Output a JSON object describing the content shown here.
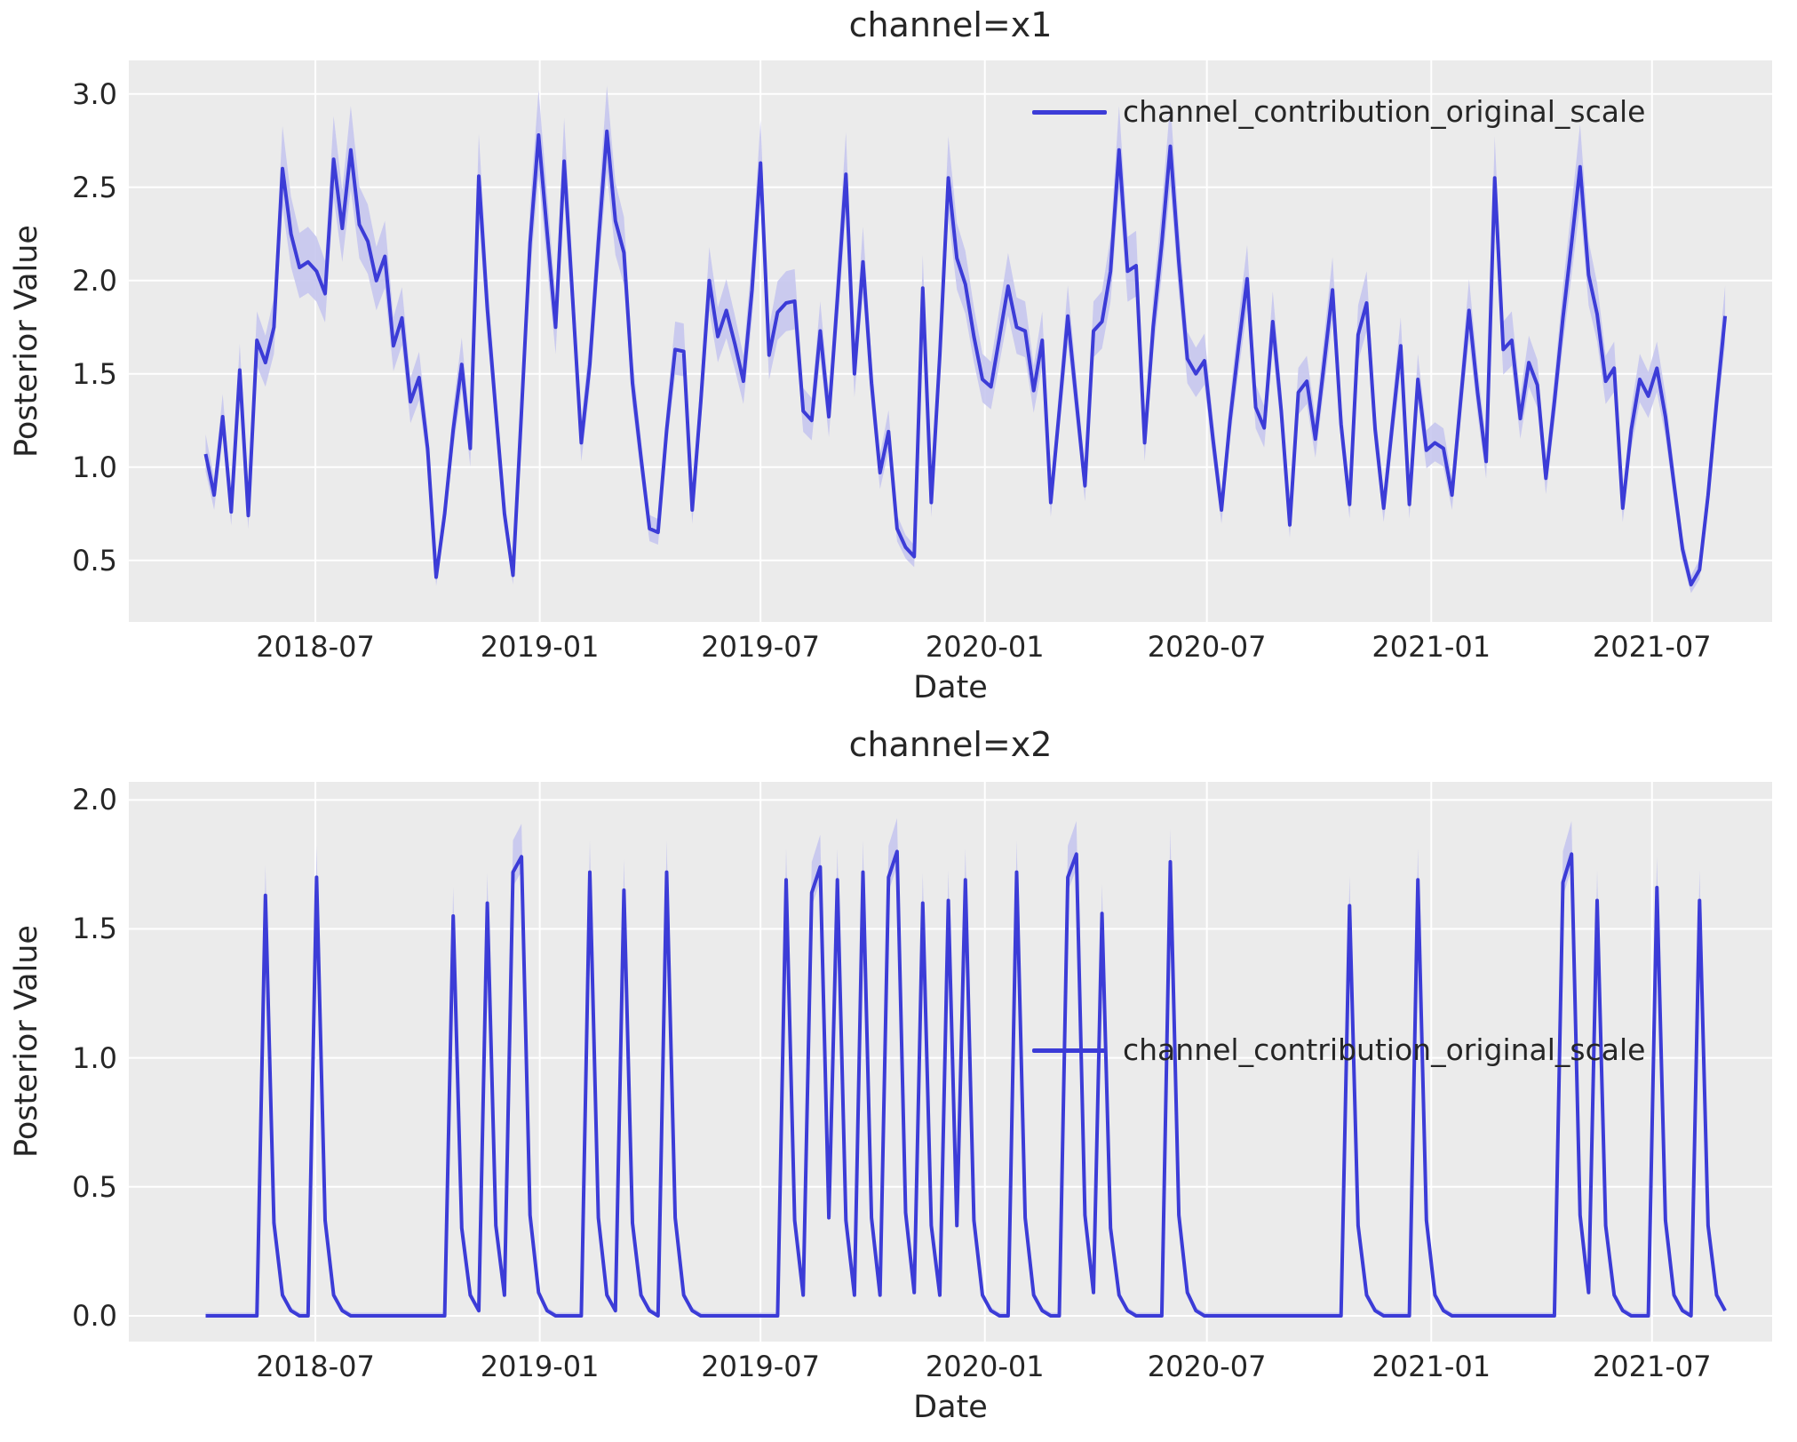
{
  "styles": {
    "accent_line": "#3c3cd7",
    "band_fill": "#c7c7ee",
    "plot_background": "#ebebeb",
    "grid_color": "#ffffff",
    "text_color": "#262626",
    "figure_background": "#ffffff"
  },
  "chart_data": [
    {
      "type": "line",
      "title": "channel=x1",
      "xlabel": "Date",
      "ylabel": "Posterior Value",
      "grid": true,
      "legend_position": "upper right",
      "x_tick_labels": [
        "2018-07",
        "2019-01",
        "2019-07",
        "2020-01",
        "2020-07",
        "2021-01",
        "2021-07"
      ],
      "y_ticks": [
        0.5,
        1.0,
        1.5,
        2.0,
        2.5,
        3.0
      ],
      "y_tick_labels": [
        "0.5",
        "1.0",
        "1.5",
        "2.0",
        "2.5",
        "3.0"
      ],
      "ylim": [
        0.17,
        3.18
      ],
      "xlim_weeks": [
        -9,
        183.5
      ],
      "x_start_date": "2018-04-02",
      "x_freq_days": 7,
      "n_points": 179,
      "band_rule": {
        "up_abs": 0.02,
        "up_rel": 0.08,
        "dn_abs": 0.02,
        "dn_rel": 0.07
      },
      "series": [
        {
          "name": "channel_contribution_original_scale",
          "values": [
            1.07,
            0.85,
            1.27,
            0.76,
            1.52,
            0.74,
            1.68,
            1.56,
            1.75,
            2.6,
            2.25,
            2.07,
            2.1,
            2.05,
            1.93,
            2.65,
            2.28,
            2.7,
            2.3,
            2.21,
            2.0,
            2.13,
            1.65,
            1.8,
            1.35,
            1.48,
            1.1,
            0.41,
            0.75,
            1.2,
            1.55,
            1.1,
            2.56,
            1.85,
            1.3,
            0.75,
            0.42,
            1.3,
            2.2,
            2.78,
            2.26,
            1.75,
            2.64,
            1.9,
            1.13,
            1.55,
            2.2,
            2.8,
            2.32,
            2.15,
            1.45,
            1.05,
            0.67,
            0.65,
            1.2,
            1.63,
            1.62,
            0.77,
            1.35,
            2.0,
            1.7,
            1.84,
            1.66,
            1.46,
            1.95,
            2.63,
            1.6,
            1.83,
            1.88,
            1.89,
            1.3,
            1.25,
            1.73,
            1.27,
            1.9,
            2.57,
            1.5,
            2.1,
            1.45,
            0.97,
            1.19,
            0.67,
            0.57,
            0.52,
            1.96,
            0.81,
            1.6,
            2.55,
            2.12,
            1.98,
            1.7,
            1.47,
            1.43,
            1.7,
            1.97,
            1.75,
            1.73,
            1.41,
            1.68,
            0.81,
            1.3,
            1.81,
            1.35,
            0.9,
            1.73,
            1.78,
            2.05,
            2.7,
            2.05,
            2.08,
            1.13,
            1.75,
            2.2,
            2.72,
            2.1,
            1.58,
            1.5,
            1.57,
            1.15,
            0.77,
            1.25,
            1.65,
            2.01,
            1.32,
            1.21,
            1.78,
            1.3,
            0.69,
            1.4,
            1.46,
            1.15,
            1.55,
            1.95,
            1.23,
            0.8,
            1.71,
            1.88,
            1.2,
            0.78,
            1.22,
            1.65,
            0.8,
            1.47,
            1.09,
            1.13,
            1.1,
            0.85,
            1.35,
            1.84,
            1.4,
            1.03,
            2.55,
            1.63,
            1.68,
            1.26,
            1.56,
            1.44,
            0.94,
            1.35,
            1.8,
            2.2,
            2.61,
            2.03,
            1.82,
            1.46,
            1.53,
            0.78,
            1.2,
            1.47,
            1.38,
            1.53,
            1.27,
            0.91,
            0.56,
            0.37,
            0.45,
            0.85,
            1.35,
            1.81
          ]
        }
      ]
    },
    {
      "type": "line",
      "title": "channel=x2",
      "xlabel": "Date",
      "ylabel": "Posterior Value",
      "grid": true,
      "legend_position": "center right",
      "x_tick_labels": [
        "2018-07",
        "2019-01",
        "2019-07",
        "2020-01",
        "2020-07",
        "2021-01",
        "2021-07"
      ],
      "y_ticks": [
        0.0,
        0.5,
        1.0,
        1.5,
        2.0
      ],
      "y_tick_labels": [
        "0.0",
        "0.5",
        "1.0",
        "1.5",
        "2.0"
      ],
      "ylim": [
        -0.1,
        2.07
      ],
      "xlim_weeks": [
        -9,
        183.5
      ],
      "x_start_date": "2018-04-02",
      "x_freq_days": 7,
      "n_points": 179,
      "band_rule": {
        "up_abs": 0.012,
        "up_rel": 0.065,
        "dn_abs": 0.004,
        "dn_rel": 0.03
      },
      "series": [
        {
          "name": "channel_contribution_original_scale",
          "values": [
            0,
            0,
            0,
            0,
            0,
            0,
            0,
            1.63,
            0.36,
            0.08,
            0.02,
            0,
            0,
            1.7,
            0.37,
            0.08,
            0.02,
            0,
            0,
            0,
            0,
            0,
            0,
            0,
            0,
            0,
            0,
            0,
            0,
            1.55,
            0.34,
            0.08,
            0.02,
            1.6,
            0.35,
            0.08,
            1.72,
            1.78,
            0.39,
            0.09,
            0.02,
            0,
            0,
            0,
            0,
            1.72,
            0.38,
            0.08,
            0.02,
            1.65,
            0.36,
            0.08,
            0.02,
            0,
            1.72,
            0.38,
            0.08,
            0.02,
            0,
            0,
            0,
            0,
            0,
            0,
            0,
            0,
            0,
            0,
            1.69,
            0.37,
            0.08,
            1.64,
            1.74,
            0.38,
            1.69,
            0.37,
            0.08,
            1.72,
            0.38,
            0.08,
            1.7,
            1.8,
            0.4,
            0.09,
            1.6,
            0.35,
            0.08,
            1.61,
            0.35,
            1.69,
            0.37,
            0.08,
            0.02,
            0,
            0,
            1.72,
            0.38,
            0.08,
            0.02,
            0,
            0,
            1.7,
            1.79,
            0.39,
            0.09,
            1.56,
            0.34,
            0.08,
            0.02,
            0,
            0,
            0,
            0,
            1.76,
            0.39,
            0.09,
            0.02,
            0,
            0,
            0,
            0,
            0,
            0,
            0,
            0,
            0,
            0,
            0,
            0,
            0,
            0,
            0,
            0,
            0,
            1.59,
            0.35,
            0.08,
            0.02,
            0,
            0,
            0,
            0,
            1.69,
            0.37,
            0.08,
            0.02,
            0,
            0,
            0,
            0,
            0,
            0,
            0,
            0,
            0,
            0,
            0,
            0,
            0,
            1.68,
            1.79,
            0.39,
            0.09,
            1.61,
            0.35,
            0.08,
            0.02,
            0,
            0,
            0,
            1.66,
            0.37,
            0.08,
            0.02,
            0,
            1.61,
            0.35,
            0.08,
            0.02
          ]
        }
      ]
    }
  ]
}
